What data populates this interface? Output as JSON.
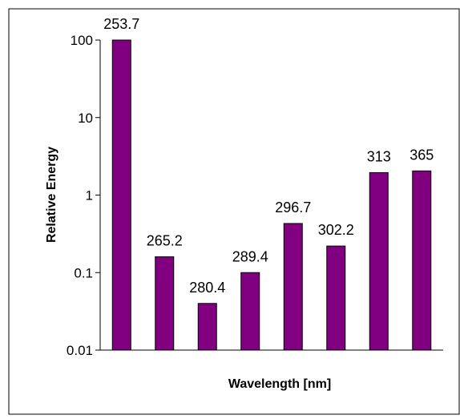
{
  "chart_data": {
    "type": "bar",
    "title": "",
    "xlabel": "Wavelength [nm]",
    "ylabel": "Relative Energy",
    "y_scale": "log",
    "ylim": [
      0.01,
      100
    ],
    "y_ticks": [
      "100",
      "10",
      "1",
      "0.1",
      "0.01"
    ],
    "y_tick_values": [
      100,
      10,
      1,
      0.1,
      0.01
    ],
    "categories": [
      "253.7",
      "265.2",
      "280.4",
      "289.4",
      "296.7",
      "302.2",
      "313",
      "365"
    ],
    "values": [
      100,
      0.16,
      0.04,
      0.1,
      0.43,
      0.22,
      1.95,
      2.05
    ],
    "data_labels": [
      "253.7",
      "265.2",
      "280.4",
      "289.4",
      "296.7",
      "302.2",
      "313",
      "365"
    ],
    "bar_color": "#800080",
    "grid": false,
    "legend": "none"
  }
}
